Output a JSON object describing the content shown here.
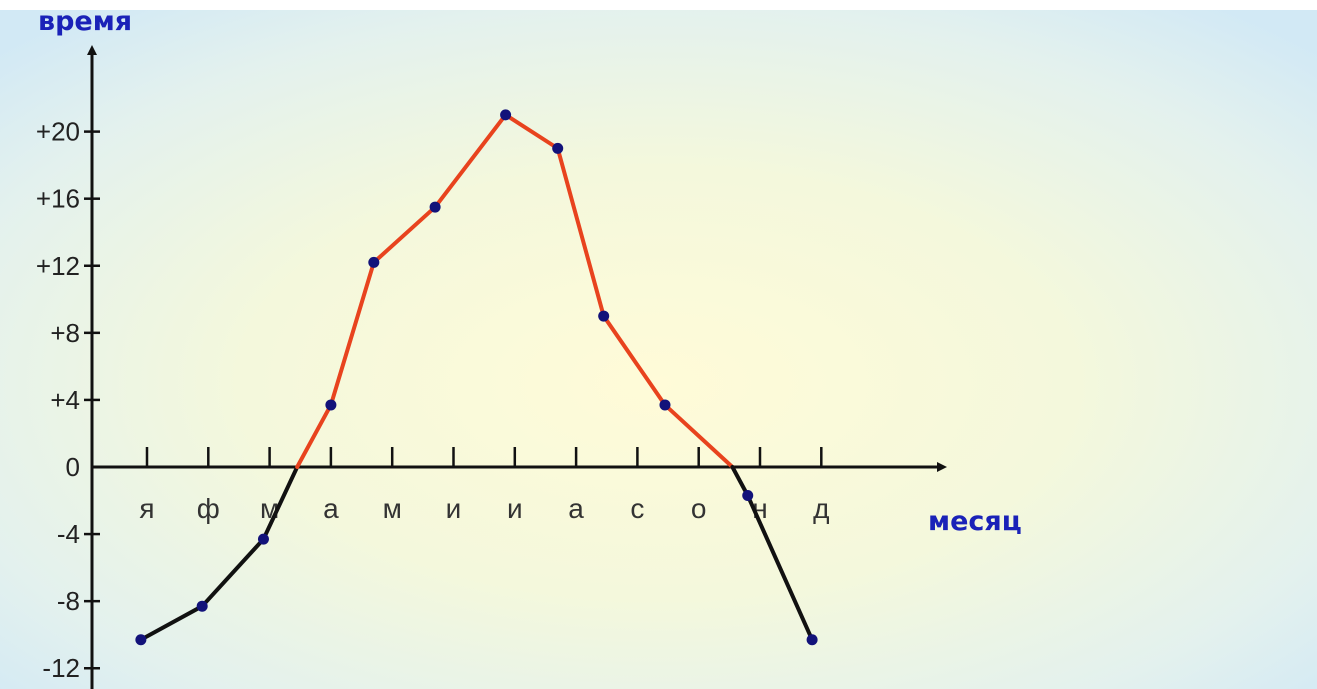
{
  "chart_data": {
    "type": "line",
    "title": "",
    "ylabel": "время",
    "xlabel": "месяц",
    "categories": [
      "я",
      "ф",
      "м",
      "а",
      "м",
      "и",
      "и",
      "а",
      "с",
      "о",
      "н",
      "д"
    ],
    "y_tick_labels": [
      "-12",
      "-8",
      "-4",
      "0",
      "+4",
      "+8",
      "+12",
      "+16",
      "+20"
    ],
    "y_ticks": [
      -12,
      -8,
      -4,
      0,
      4,
      8,
      12,
      16,
      20
    ],
    "ylim": [
      -12,
      24
    ],
    "grid": false,
    "legend": "none",
    "series": [
      {
        "x": [
          -0.1,
          0.9,
          1.9,
          2.45,
          3.0,
          3.7,
          4.7,
          5.85,
          6.7,
          7.45,
          8.45,
          9.55,
          9.8,
          10.85
        ],
        "y": [
          -10.3,
          -8.3,
          -4.3,
          0,
          3.7,
          12.2,
          15.5,
          21.0,
          19.0,
          9.0,
          3.7,
          0,
          -1.7,
          -10.3
        ],
        "point_marker": [
          true,
          true,
          true,
          false,
          true,
          true,
          true,
          true,
          true,
          true,
          true,
          false,
          true,
          true
        ]
      }
    ],
    "colors": {
      "positive_line": "#e8431e",
      "negative_line": "#111111",
      "marker": "#12127a",
      "axis": "#111111"
    }
  }
}
